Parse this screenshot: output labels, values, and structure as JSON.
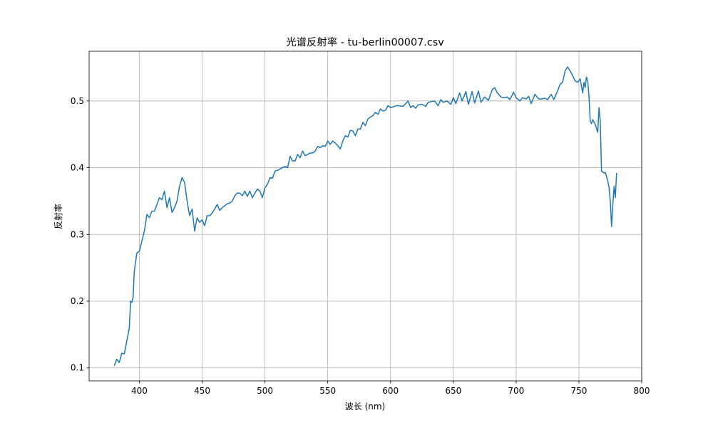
{
  "chart_data": {
    "type": "line",
    "title": "光谱反射率 - tu-berlin00007.csv",
    "x_label": "波长 (nm)",
    "y_label": "反射率",
    "xlim": [
      360,
      800
    ],
    "xticks": [
      400,
      450,
      500,
      550,
      600,
      650,
      700,
      750,
      800
    ],
    "ylim": [
      0.0805,
      0.5745
    ],
    "yticks": [
      0.1,
      0.2,
      0.3,
      0.4,
      0.5
    ],
    "grid": true,
    "series": [
      {
        "color": "#1f77b4",
        "x": [
          380,
          382,
          384,
          386,
          388,
          390,
          392,
          393,
          394,
          395,
          396,
          398,
          400,
          402,
          404,
          406,
          408,
          410,
          412,
          414,
          416,
          418,
          420,
          422,
          424,
          426,
          428,
          430,
          432,
          434,
          436,
          438,
          440,
          442,
          444,
          446,
          448,
          450,
          452,
          454,
          456,
          458,
          460,
          462,
          464,
          466,
          468,
          470,
          472,
          474,
          476,
          478,
          480,
          482,
          484,
          486,
          488,
          490,
          492,
          494,
          496,
          498,
          500,
          502,
          504,
          506,
          508,
          510,
          512,
          514,
          516,
          518,
          520,
          522,
          524,
          526,
          528,
          530,
          532,
          534,
          536,
          538,
          540,
          542,
          544,
          546,
          548,
          550,
          552,
          554,
          556,
          558,
          560,
          562,
          564,
          566,
          568,
          570,
          572,
          574,
          576,
          578,
          580,
          582,
          584,
          586,
          588,
          590,
          592,
          594,
          596,
          598,
          600,
          605,
          610,
          612,
          614,
          616,
          618,
          620,
          622,
          625,
          628,
          630,
          635,
          638,
          640,
          642,
          645,
          648,
          650,
          652,
          655,
          657,
          660,
          662,
          665,
          667,
          670,
          672,
          675,
          678,
          681,
          683,
          685,
          688,
          690,
          693,
          695,
          698,
          700,
          703,
          705,
          708,
          710,
          712,
          715,
          718,
          720,
          723,
          725,
          728,
          730,
          733,
          735,
          737,
          739,
          741,
          743,
          745,
          747,
          749,
          751,
          753,
          754,
          755,
          756,
          757,
          758,
          759,
          760,
          761,
          763,
          765,
          766,
          767,
          768,
          770,
          771,
          773,
          774,
          775,
          776,
          777,
          778,
          779,
          780
        ],
        "values": [
          0.103,
          0.113,
          0.108,
          0.122,
          0.121,
          0.14,
          0.16,
          0.2,
          0.198,
          0.205,
          0.245,
          0.272,
          0.275,
          0.29,
          0.305,
          0.33,
          0.325,
          0.335,
          0.335,
          0.345,
          0.355,
          0.352,
          0.365,
          0.34,
          0.355,
          0.333,
          0.34,
          0.35,
          0.372,
          0.385,
          0.378,
          0.35,
          0.328,
          0.338,
          0.305,
          0.325,
          0.318,
          0.322,
          0.313,
          0.328,
          0.328,
          0.332,
          0.338,
          0.345,
          0.336,
          0.34,
          0.343,
          0.346,
          0.347,
          0.35,
          0.358,
          0.362,
          0.362,
          0.358,
          0.365,
          0.357,
          0.365,
          0.355,
          0.362,
          0.368,
          0.365,
          0.355,
          0.37,
          0.375,
          0.385,
          0.384,
          0.395,
          0.396,
          0.398,
          0.4,
          0.402,
          0.4,
          0.417,
          0.41,
          0.41,
          0.42,
          0.415,
          0.425,
          0.418,
          0.42,
          0.422,
          0.422,
          0.425,
          0.432,
          0.43,
          0.433,
          0.432,
          0.44,
          0.435,
          0.44,
          0.437,
          0.433,
          0.428,
          0.44,
          0.448,
          0.446,
          0.456,
          0.455,
          0.448,
          0.458,
          0.458,
          0.468,
          0.463,
          0.473,
          0.476,
          0.478,
          0.483,
          0.48,
          0.488,
          0.485,
          0.486,
          0.493,
          0.49,
          0.493,
          0.492,
          0.496,
          0.5,
          0.49,
          0.493,
          0.489,
          0.494,
          0.495,
          0.492,
          0.498,
          0.5,
          0.493,
          0.502,
          0.498,
          0.5,
          0.495,
          0.505,
          0.496,
          0.512,
          0.5,
          0.514,
          0.495,
          0.514,
          0.497,
          0.515,
          0.498,
          0.506,
          0.501,
          0.517,
          0.52,
          0.512,
          0.506,
          0.505,
          0.506,
          0.502,
          0.513,
          0.505,
          0.5,
          0.505,
          0.503,
          0.507,
          0.496,
          0.51,
          0.503,
          0.503,
          0.504,
          0.502,
          0.51,
          0.502,
          0.515,
          0.525,
          0.528,
          0.545,
          0.551,
          0.545,
          0.538,
          0.53,
          0.528,
          0.533,
          0.512,
          0.528,
          0.52,
          0.536,
          0.53,
          0.508,
          0.47,
          0.466,
          0.472,
          0.465,
          0.453,
          0.49,
          0.47,
          0.395,
          0.392,
          0.393,
          0.38,
          0.37,
          0.35,
          0.312,
          0.345,
          0.372,
          0.355,
          0.392
        ]
      }
    ]
  }
}
